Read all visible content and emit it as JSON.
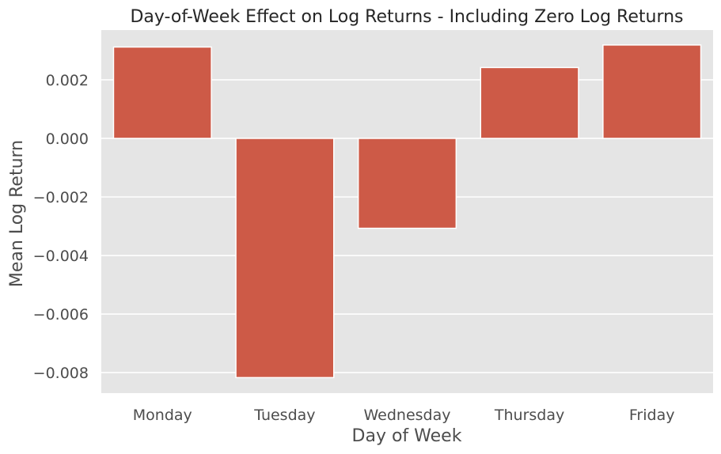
{
  "chart_data": {
    "type": "bar",
    "title": "Day-of-Week Effect on Log Returns - Including Zero Log Returns",
    "xlabel": "Day of Week",
    "ylabel": "Mean Log Return",
    "categories": [
      "Monday",
      "Tuesday",
      "Wednesday",
      "Thursday",
      "Friday"
    ],
    "values": [
      0.00312,
      -0.00817,
      -0.00307,
      0.00242,
      0.00319
    ],
    "ylim": [
      -0.0087,
      0.0037
    ],
    "yticks": [
      0.002,
      0.0,
      -0.002,
      -0.004,
      -0.006,
      -0.008
    ],
    "ytick_labels": [
      "0.002",
      "0.000",
      "−0.002",
      "−0.004",
      "−0.006",
      "−0.008"
    ],
    "grid": true,
    "colors": {
      "bar": "#cd5a47",
      "background": "#e5e5e5",
      "grid": "#ffffff"
    }
  }
}
